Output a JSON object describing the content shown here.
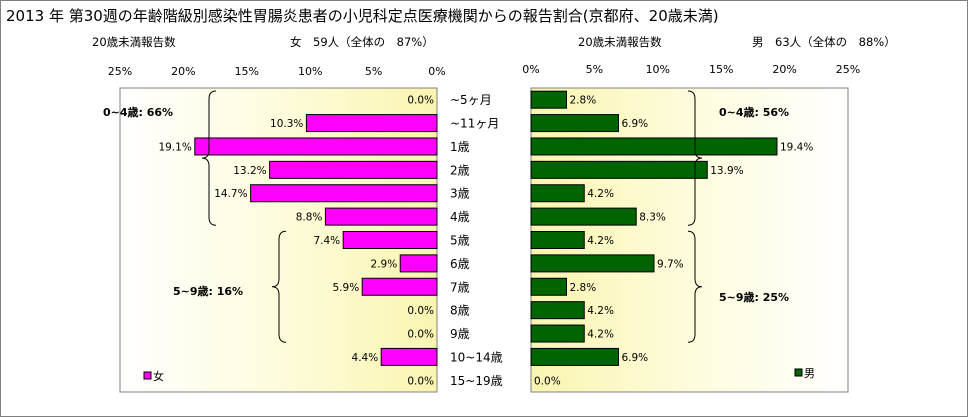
{
  "title": "2013 年 第30週の年齢階級別感染性胃腸炎患者の小児科定点医療機関からの報告割合(京都府、20歳未満)",
  "chart_data": {
    "type": "bar",
    "orientation": "horizontal-butterfly",
    "categories": [
      "~5ヶ月",
      "~11ヶ月",
      "1歳",
      "2歳",
      "3歳",
      "4歳",
      "5歳",
      "6歳",
      "7歳",
      "8歳",
      "9歳",
      "10~14歳",
      "15~19歳"
    ],
    "xlim": [
      0,
      25
    ],
    "xticks": [
      "0%",
      "5%",
      "10%",
      "15%",
      "20%",
      "25%"
    ],
    "grid": false,
    "panels": {
      "female": {
        "header_left": "20歳未満報告数",
        "header_right": "女　59人（全体の　87%）",
        "legend": "女",
        "legend_position": "bottom-left",
        "color": "#ff00ff",
        "direction": "left",
        "values": [
          0.0,
          10.3,
          19.1,
          13.2,
          14.7,
          8.8,
          7.4,
          2.9,
          5.9,
          0.0,
          0.0,
          4.4,
          0.0
        ],
        "labels": [
          "0.0%",
          "10.3%",
          "19.1%",
          "13.2%",
          "14.7%",
          "8.8%",
          "7.4%",
          "2.9%",
          "5.9%",
          "0.0%",
          "0.0%",
          "4.4%",
          "0.0%"
        ],
        "groups": [
          {
            "label": "0~4歳: 66%",
            "from": 0,
            "to": 5
          },
          {
            "label": "5~9歳: 16%",
            "from": 6,
            "to": 10
          }
        ]
      },
      "male": {
        "header_left": "20歳未満報告数",
        "header_right": "男　63人（全体の　88%）",
        "legend": "男",
        "legend_position": "bottom-right",
        "color": "#006400",
        "direction": "right",
        "values": [
          2.8,
          6.9,
          19.4,
          13.9,
          4.2,
          8.3,
          4.2,
          9.7,
          2.8,
          4.2,
          4.2,
          6.9,
          0.0
        ],
        "labels": [
          "2.8%",
          "6.9%",
          "19.4%",
          "13.9%",
          "4.2%",
          "8.3%",
          "4.2%",
          "9.7%",
          "2.8%",
          "4.2%",
          "4.2%",
          "6.9%",
          "0.0%"
        ],
        "groups": [
          {
            "label": "0~4歳: 56%",
            "from": 0,
            "to": 5
          },
          {
            "label": "5~9歳: 25%",
            "from": 6,
            "to": 10
          }
        ]
      }
    }
  }
}
